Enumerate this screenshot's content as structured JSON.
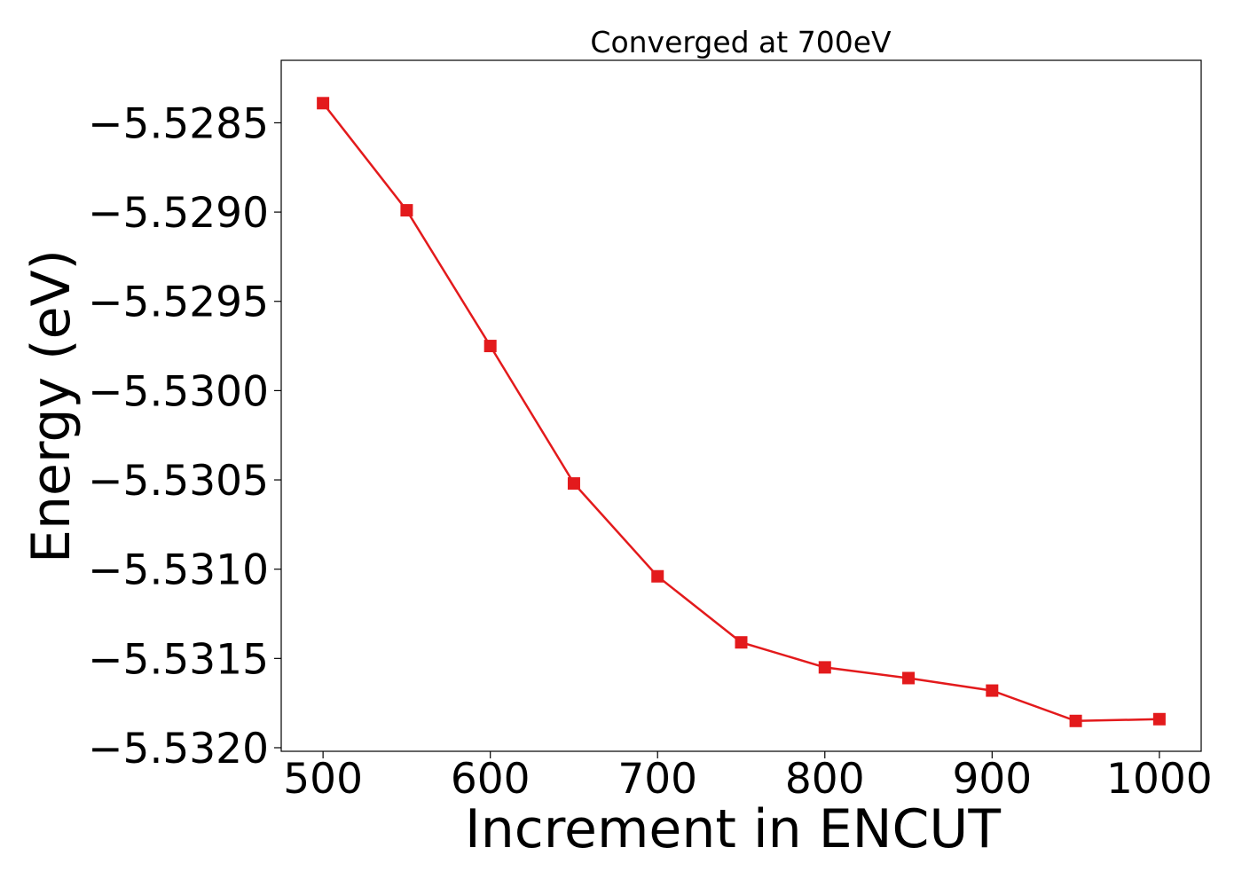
{
  "chart_data": {
    "type": "line",
    "title": "Converged at 700eV",
    "xlabel": "Increment in ENCUT",
    "ylabel": "Energy (eV)",
    "xlim": [
      475,
      1025
    ],
    "ylim": [
      -5.53202,
      -5.52815
    ],
    "x_ticks": [
      500,
      600,
      700,
      800,
      900,
      1000
    ],
    "x_tick_labels": [
      "500",
      "600",
      "700",
      "800",
      "900",
      "1000"
    ],
    "y_ticks": [
      -5.5285,
      -5.529,
      -5.5295,
      -5.53,
      -5.5305,
      -5.531,
      -5.5315,
      -5.532
    ],
    "y_tick_labels": [
      "−5.5285",
      "−5.5290",
      "−5.5295",
      "−5.5300",
      "−5.5305",
      "−5.5310",
      "−5.5315",
      "−5.5320"
    ],
    "grid": false,
    "series": [
      {
        "color": "#e31a1c",
        "marker": "square",
        "x": [
          500,
          550,
          600,
          650,
          700,
          750,
          800,
          850,
          900,
          950,
          1000
        ],
        "y": [
          -5.52839,
          -5.52899,
          -5.52975,
          -5.53052,
          -5.53104,
          -5.53141,
          -5.53155,
          -5.53161,
          -5.53168,
          -5.53185,
          -5.53184
        ]
      }
    ]
  }
}
